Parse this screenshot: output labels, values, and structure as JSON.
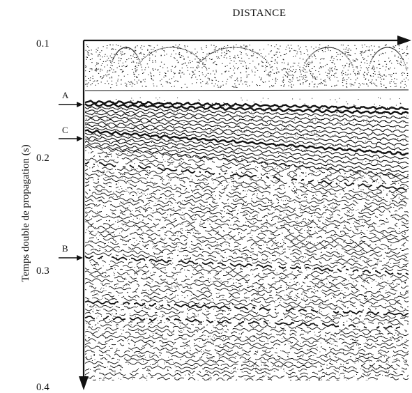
{
  "figure": {
    "x_axis_title": "DISTANCE",
    "y_axis_title": "Temps double de propagation  (s)",
    "y_ticks": [
      {
        "value": 0.1,
        "label": "0.1"
      },
      {
        "value": 0.2,
        "label": "0.2"
      },
      {
        "value": 0.3,
        "label": "0.3"
      },
      {
        "value": 0.4,
        "label": "0.4"
      }
    ],
    "y_range": [
      0.1,
      0.4
    ],
    "reflector_markers": [
      {
        "id": "A",
        "label": "A",
        "time": 0.145
      },
      {
        "id": "C",
        "label": "C",
        "time": 0.18
      },
      {
        "id": "B",
        "label": "B",
        "time": 0.28
      }
    ],
    "ink_color": "#111111",
    "background_color": "#ffffff"
  }
}
